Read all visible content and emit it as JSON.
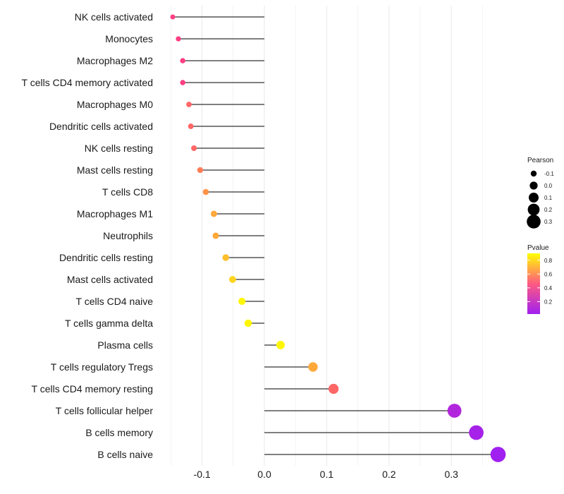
{
  "chart_data": {
    "type": "lollipop",
    "title": "",
    "xlabel": "",
    "ylabel": "",
    "xlim": [
      -0.155,
      0.378
    ],
    "xticks": [
      -0.1,
      0.0,
      0.1,
      0.2,
      0.3
    ],
    "xtick_labels": [
      "-0.1",
      "0.0",
      "0.1",
      "0.2",
      "0.3"
    ],
    "grid": true,
    "categories": [
      "NK cells activated",
      "Monocytes",
      "Macrophages M2",
      "T cells CD4 memory activated",
      "Macrophages M0",
      "Dendritic cells activated",
      "NK cells resting",
      "Mast cells resting",
      "T cells CD8",
      "Macrophages M1",
      "Neutrophils",
      "Dendritic cells resting",
      "Mast cells activated",
      "T cells CD4 naive",
      "T cells gamma delta",
      "Plasma cells",
      "T cells regulatory  Tregs ",
      "T cells CD4 memory resting",
      "T cells follicular helper",
      "B cells memory",
      "B cells naive"
    ],
    "pearson": [
      -0.147,
      -0.138,
      -0.131,
      -0.131,
      -0.121,
      -0.118,
      -0.113,
      -0.103,
      -0.094,
      -0.081,
      -0.078,
      -0.062,
      -0.051,
      -0.036,
      -0.026,
      0.026,
      0.078,
      0.111,
      0.305,
      0.34,
      0.375
    ],
    "pvalue": [
      0.45,
      0.45,
      0.45,
      0.45,
      0.55,
      0.55,
      0.55,
      0.6,
      0.65,
      0.7,
      0.7,
      0.75,
      0.8,
      0.88,
      0.88,
      0.88,
      0.7,
      0.55,
      0.1,
      0.05,
      0.02
    ],
    "legend_size": {
      "title": "Pearson",
      "labels": [
        "-0.1",
        "0.0",
        "0.1",
        "0.2",
        "0.3"
      ],
      "values": [
        -0.1,
        0.0,
        0.1,
        0.2,
        0.3
      ]
    },
    "legend_color": {
      "title": "Pvalue",
      "labels": [
        "0.8",
        "0.6",
        "0.4",
        "0.2"
      ],
      "values": [
        0.8,
        0.6,
        0.4,
        0.2
      ],
      "range": [
        0.02,
        0.9
      ],
      "colors": [
        "#a020f0",
        "#ff4080",
        "#ffff00"
      ]
    },
    "line_color": "#333333",
    "grid_color": "#ebebeb",
    "legend_position": "right"
  }
}
